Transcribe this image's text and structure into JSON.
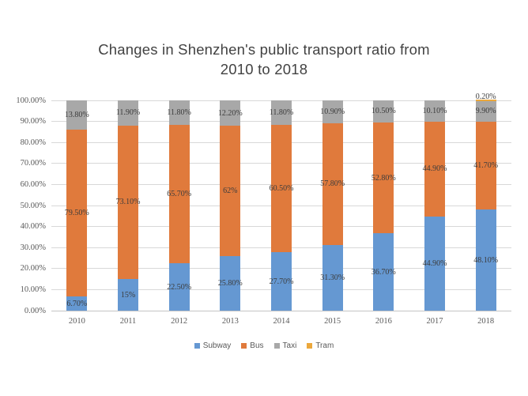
{
  "title": {
    "line1": "Changes in Shenzhen's public transport ratio from",
    "line2": "2010 to 2018"
  },
  "chart_data": {
    "type": "bar",
    "stacked": true,
    "title": "Changes in Shenzhen's public transport ratio from 2010 to 2018",
    "categories": [
      "2010",
      "2011",
      "2012",
      "2013",
      "2014",
      "2015",
      "2016",
      "2017",
      "2018"
    ],
    "series": [
      {
        "name": "Subway",
        "color": "#6598d2",
        "values": [
          6.7,
          15,
          22.5,
          25.8,
          27.7,
          31.3,
          36.7,
          44.9,
          48.1
        ],
        "labels": [
          "6.70%",
          "15%",
          "22.50%",
          "25.80%",
          "27.70%",
          "31.30%",
          "36.70%",
          "44.90%",
          "48.10%"
        ]
      },
      {
        "name": "Bus",
        "color": "#e07a3c",
        "values": [
          79.5,
          73.1,
          65.7,
          62,
          60.5,
          57.8,
          52.8,
          44.9,
          41.7
        ],
        "labels": [
          "79.50%",
          "73.10%",
          "65.70%",
          "62%",
          "60.50%",
          "57.80%",
          "52.80%",
          "44.90%",
          "41.70%"
        ]
      },
      {
        "name": "Taxi",
        "color": "#a8a8a8",
        "values": [
          13.8,
          11.9,
          11.8,
          12.2,
          11.8,
          10.9,
          10.5,
          10.1,
          9.9
        ],
        "labels": [
          "13.80%",
          "11.90%",
          "11.80%",
          "12.20%",
          "11.80%",
          "10.90%",
          "10.50%",
          "10.10%",
          "9.90%"
        ]
      },
      {
        "name": "Tram",
        "color": "#eca83c",
        "values": [
          0,
          0,
          0,
          0,
          0,
          0,
          0,
          0,
          0.2
        ],
        "labels": [
          null,
          null,
          null,
          null,
          null,
          null,
          null,
          null,
          "0.20%"
        ]
      }
    ],
    "xlabel": "",
    "ylabel": "",
    "ylim": [
      0,
      100
    ],
    "y_ticks": [
      "100.00%",
      "90.00%",
      "80.00%",
      "70.00%",
      "60.00%",
      "50.00%",
      "40.00%",
      "30.00%",
      "20.00%",
      "10.00%",
      "0.00%"
    ],
    "grid": true,
    "legend_position": "bottom"
  },
  "palette": {
    "subway": "#6598d2",
    "bus": "#e07a3c",
    "taxi": "#a8a8a8",
    "tram": "#eca83c",
    "gridline": "#d8d8d8",
    "axis_line": "#c4c4c4",
    "data_label": "#3c3c3c",
    "tick_label": "#595959",
    "title_text": "#424242"
  }
}
